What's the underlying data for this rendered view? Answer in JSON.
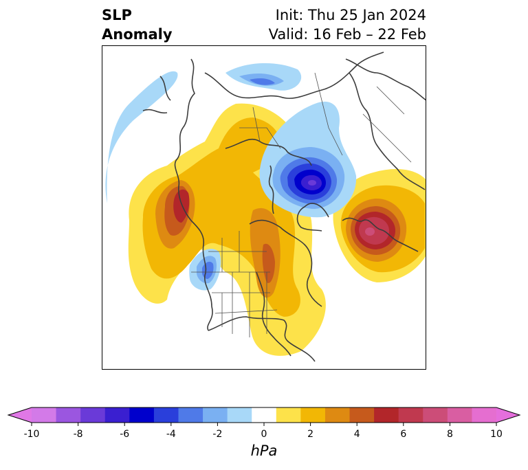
{
  "title": {
    "left_line1": "SLP",
    "left_line2": "Anomaly",
    "right_line1": "Init: Thu 25 Jan 2024",
    "right_line2": "Valid: 16 Feb – 22 Feb"
  },
  "colorbar": {
    "label": "hPa",
    "levels": [
      -10,
      -9,
      -8,
      -7,
      -6,
      -5,
      -4,
      -3,
      -2,
      -1,
      1,
      2,
      3,
      4,
      5,
      6,
      7,
      8,
      9,
      10
    ],
    "tick_labels": [
      "-10",
      "-8",
      "-6",
      "-4",
      "-2",
      "0",
      "2",
      "4",
      "6",
      "8",
      "10"
    ],
    "colors": [
      "#d37ae8",
      "#9b56e0",
      "#6a3ad8",
      "#3a1fd0",
      "#0000cc",
      "#2a3fdb",
      "#4f7ae8",
      "#7ab0f2",
      "#a8d8f8",
      "#ffffff",
      "#fde24a",
      "#f2b705",
      "#de8a12",
      "#c65a1c",
      "#b2262a",
      "#c0394f",
      "#cc4d78",
      "#d95ea2",
      "#e56ed0"
    ],
    "under_color": "#e078e6",
    "over_color": "#e56fdc"
  }
}
